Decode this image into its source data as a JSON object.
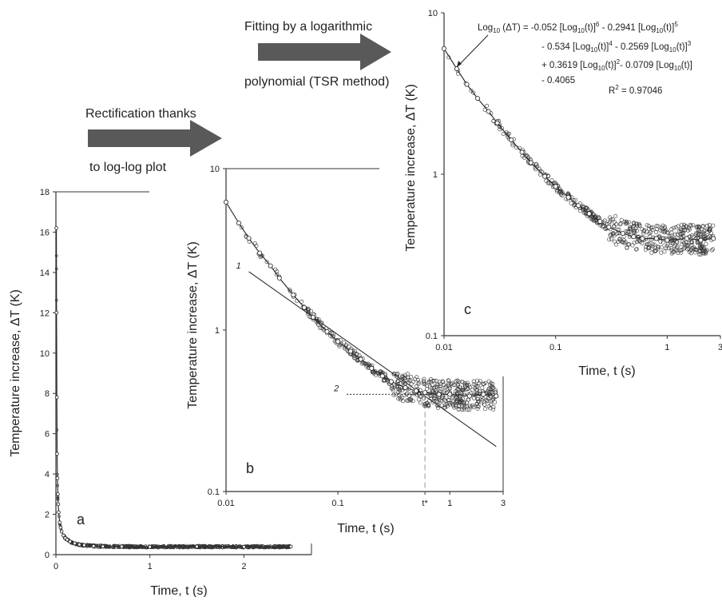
{
  "annotations": {
    "arrow1_line1": "Rectification thanks",
    "arrow1_line2": "to log-log plot",
    "arrow2_line1": "Fitting by a logarithmic",
    "arrow2_line2": "polynomial (TSR method)"
  },
  "colors": {
    "arrow_fill": "#595959",
    "ink": "#222222",
    "marker": "#333333",
    "guide": "#999999"
  },
  "chart_data": [
    {
      "type": "scatter",
      "panel_label": "a",
      "xlabel": "Time, t (s)",
      "ylabel": "Temperature increase, ΔT (K)",
      "xlim": [
        0,
        2.6
      ],
      "ylim": [
        0,
        18
      ],
      "x_scale": "linear",
      "y_scale": "linear",
      "xticks": [
        0,
        1,
        2
      ],
      "xtick_labels": [
        "0",
        "1",
        "2"
      ],
      "yticks": [
        0,
        2,
        4,
        6,
        8,
        10,
        12,
        14,
        16,
        18
      ],
      "ytick_labels": [
        "0",
        "2",
        "4",
        "6",
        "8",
        "10",
        "12",
        "14",
        "16",
        "18"
      ],
      "series": [
        {
          "x": [
            0.005,
            0.007,
            0.01,
            0.013,
            0.016,
            0.02,
            0.025,
            0.03,
            0.04,
            0.05,
            0.06,
            0.08,
            0.1,
            0.12,
            0.15,
            0.2,
            0.25,
            0.3,
            0.4,
            0.5,
            0.7,
            1.0,
            1.5,
            2.0,
            2.5
          ],
          "y": [
            16.2,
            12.0,
            7.8,
            5.0,
            3.8,
            3.0,
            2.5,
            2.1,
            1.6,
            1.35,
            1.15,
            0.95,
            0.82,
            0.74,
            0.65,
            0.56,
            0.5,
            0.47,
            0.43,
            0.41,
            0.4,
            0.39,
            0.4,
            0.39,
            0.4
          ]
        }
      ]
    },
    {
      "type": "scatter",
      "panel_label": "b",
      "xlabel": "Time, t (s)",
      "ylabel": "Temperature increase, ΔT (K)",
      "xlim": [
        0.01,
        3
      ],
      "ylim": [
        0.1,
        10
      ],
      "x_scale": "log",
      "y_scale": "log",
      "xticks": [
        0.01,
        0.1,
        0.6,
        1,
        3
      ],
      "xtick_labels": [
        "0.01",
        "0.1",
        "t*",
        "1",
        "3"
      ],
      "yticks": [
        0.1,
        1,
        10
      ],
      "ytick_labels": [
        "0.1",
        "1",
        "10"
      ],
      "series": [
        {
          "x": [
            0.01,
            0.013,
            0.016,
            0.02,
            0.025,
            0.03,
            0.04,
            0.05,
            0.06,
            0.08,
            0.1,
            0.13,
            0.16,
            0.2,
            0.25,
            0.3,
            0.4,
            0.5,
            0.6,
            0.8,
            1.0,
            1.5,
            2.0,
            2.6
          ],
          "y": [
            6.2,
            4.6,
            3.7,
            3.0,
            2.5,
            2.1,
            1.65,
            1.38,
            1.2,
            0.98,
            0.85,
            0.74,
            0.66,
            0.58,
            0.52,
            0.48,
            0.44,
            0.42,
            0.41,
            0.4,
            0.4,
            0.39,
            0.4,
            0.39
          ]
        }
      ],
      "line_annotations": [
        {
          "label": "1",
          "from": [
            0.016,
            2.3
          ],
          "to": [
            2.6,
            0.19
          ]
        },
        {
          "label": "2",
          "from": [
            0.12,
            0.4
          ],
          "to": [
            2.6,
            0.4
          ]
        }
      ],
      "marker": {
        "label": "t*",
        "x": 0.6
      }
    },
    {
      "type": "scatter",
      "panel_label": "c",
      "xlabel": "Time, t (s)",
      "ylabel": "Temperature increase, ΔT (K)",
      "xlim": [
        0.01,
        3
      ],
      "ylim": [
        0.1,
        10
      ],
      "x_scale": "log",
      "y_scale": "log",
      "xticks": [
        0.01,
        0.1,
        1,
        3
      ],
      "xtick_labels": [
        "0.01",
        "0.1",
        "1",
        "3"
      ],
      "yticks": [
        0.1,
        1,
        10
      ],
      "ytick_labels": [
        "0.1",
        "1",
        "10"
      ],
      "series": [
        {
          "x": [
            0.01,
            0.013,
            0.016,
            0.02,
            0.025,
            0.03,
            0.04,
            0.05,
            0.06,
            0.08,
            0.1,
            0.13,
            0.16,
            0.2,
            0.25,
            0.3,
            0.4,
            0.5,
            0.6,
            0.8,
            1.0,
            1.5,
            2.0,
            2.6
          ],
          "y": [
            6.0,
            4.5,
            3.6,
            2.95,
            2.45,
            2.08,
            1.63,
            1.37,
            1.18,
            0.97,
            0.84,
            0.72,
            0.64,
            0.57,
            0.51,
            0.47,
            0.43,
            0.41,
            0.4,
            0.4,
            0.39,
            0.4,
            0.39,
            0.4
          ]
        }
      ],
      "equation": {
        "line1_prefix": "Log",
        "line1_sub": "10",
        "line1_rest": " (ΔT)  = -0.052 [Log",
        "line1_sub2": "10",
        "line1_mid": "(t)]",
        "line1_sup": "6",
        "line1_tail": " - 0.2941 [Log",
        "line1_sub3": "10",
        "line1_mid2": "(t)]",
        "line1_sup2": "5",
        "line2_a": "- 0.534 [Log",
        "line2_sub": "10",
        "line2_b": "(t)]",
        "line2_sup": "4",
        "line2_c": " - 0.2569 [Log",
        "line2_sub2": "10",
        "line2_d": "(t)]",
        "line2_sup2": "3",
        "line3_a": "+ 0.3619 [Log",
        "line3_sub": "10",
        "line3_b": "(t)]",
        "line3_sup": "2",
        "line3_c": "- 0.0709 [Log",
        "line3_sub2": "10",
        "line3_d": "(t)]",
        "line4": "- 0.4065",
        "r2_label": "R",
        "r2_sup": "2",
        "r2_value": " = 0.97046"
      }
    }
  ]
}
